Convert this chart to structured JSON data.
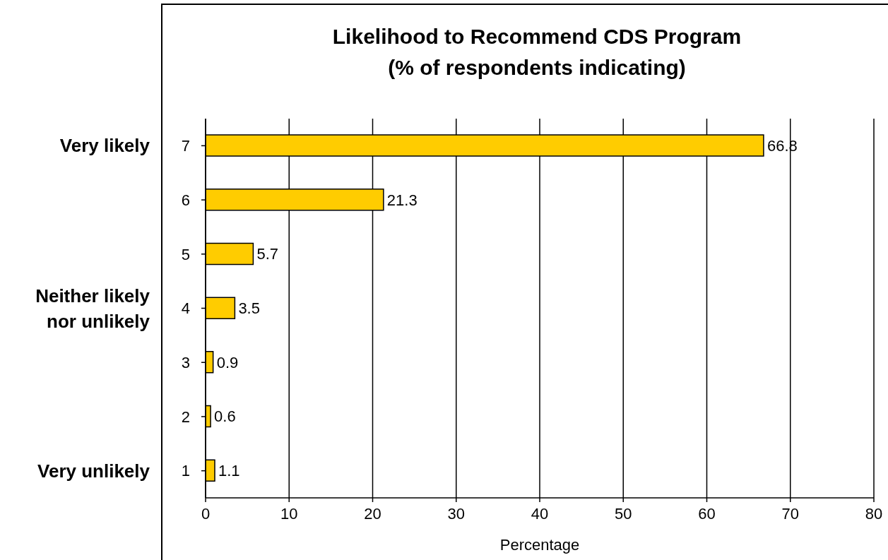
{
  "chart_data": {
    "type": "bar",
    "orientation": "horizontal",
    "title": "Likelihood to Recommend CDS Program\n(% of respondents indicating)",
    "xlabel": "Percentage",
    "categories": [
      "7",
      "6",
      "5",
      "4",
      "3",
      "2",
      "1"
    ],
    "values": [
      66.8,
      21.3,
      5.7,
      3.5,
      0.9,
      0.6,
      1.1
    ],
    "color": "#ffcc00",
    "xlim": [
      0,
      80
    ],
    "xticks": [
      0,
      10,
      20,
      30,
      40,
      50,
      60,
      70,
      80
    ],
    "grid": "x",
    "data_labels": true,
    "legend": false,
    "annotations": [
      "Very likely",
      "Neither likely\nnor unlikely",
      "Very unlikely"
    ]
  }
}
